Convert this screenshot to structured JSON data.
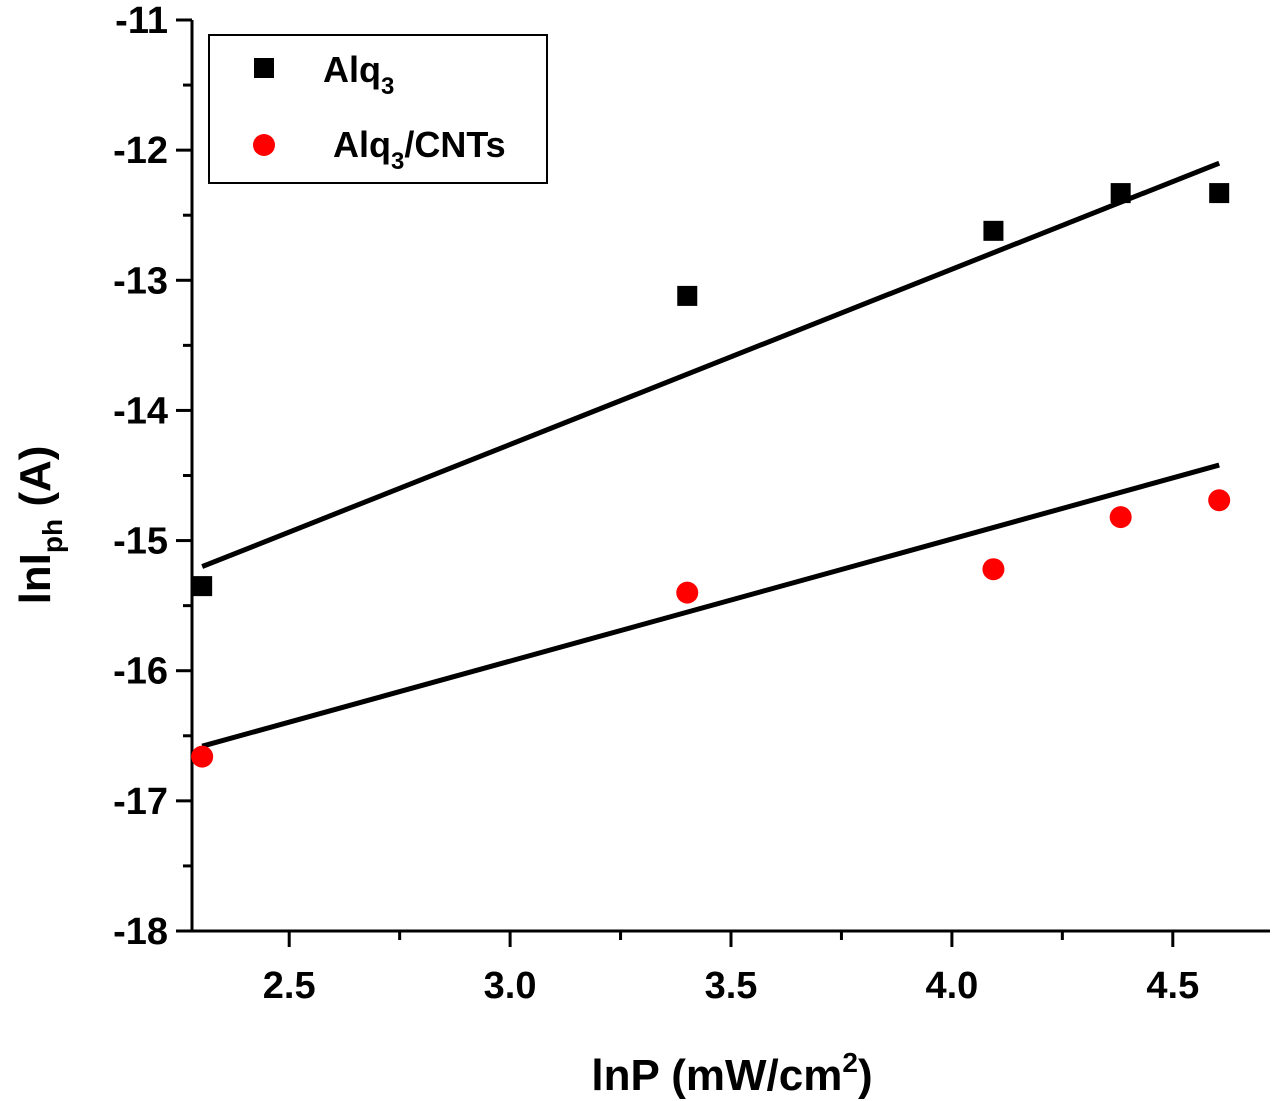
{
  "chart_data": {
    "type": "scatter",
    "xlabel": "lnP (mW/cm",
    "xlabel_sup": "2",
    "xlabel_end": ")",
    "ylabel": "lnI",
    "ylabel_sub": "ph",
    "ylabel_end": " (A)",
    "xlim": [
      2.28,
      4.72
    ],
    "ylim": [
      -18,
      -11
    ],
    "x_ticks": [
      2.5,
      3.0,
      3.5,
      4.0,
      4.5
    ],
    "x_tick_labels": [
      "2.5",
      "3.0",
      "3.5",
      "4.0",
      "4.5"
    ],
    "y_ticks": [
      -18,
      -17,
      -16,
      -15,
      -14,
      -13,
      -12,
      -11
    ],
    "y_tick_labels": [
      "-18",
      "-17",
      "-16",
      "-15",
      "-14",
      "-13",
      "-12",
      "-11"
    ],
    "grid": false,
    "legend_position": "top-left",
    "series": [
      {
        "name": "Alq",
        "name_sub": "3",
        "name_end": "",
        "marker": "square",
        "color": "#000000",
        "x": [
          2.303,
          3.401,
          4.094,
          4.382,
          4.605
        ],
        "y": [
          -15.35,
          -13.12,
          -12.62,
          -12.33,
          -12.33
        ],
        "fit": {
          "x": [
            2.303,
            4.605
          ],
          "y": [
            -15.2,
            -12.1
          ]
        }
      },
      {
        "name": "Alq",
        "name_sub": "3",
        "name_end": "/CNTs",
        "marker": "circle",
        "color": "#ff0000",
        "x": [
          2.303,
          3.401,
          4.094,
          4.382,
          4.605
        ],
        "y": [
          -16.66,
          -15.4,
          -15.22,
          -14.82,
          -14.69
        ],
        "fit": {
          "x": [
            2.303,
            4.605
          ],
          "y": [
            -16.58,
            -14.42
          ]
        }
      }
    ]
  }
}
